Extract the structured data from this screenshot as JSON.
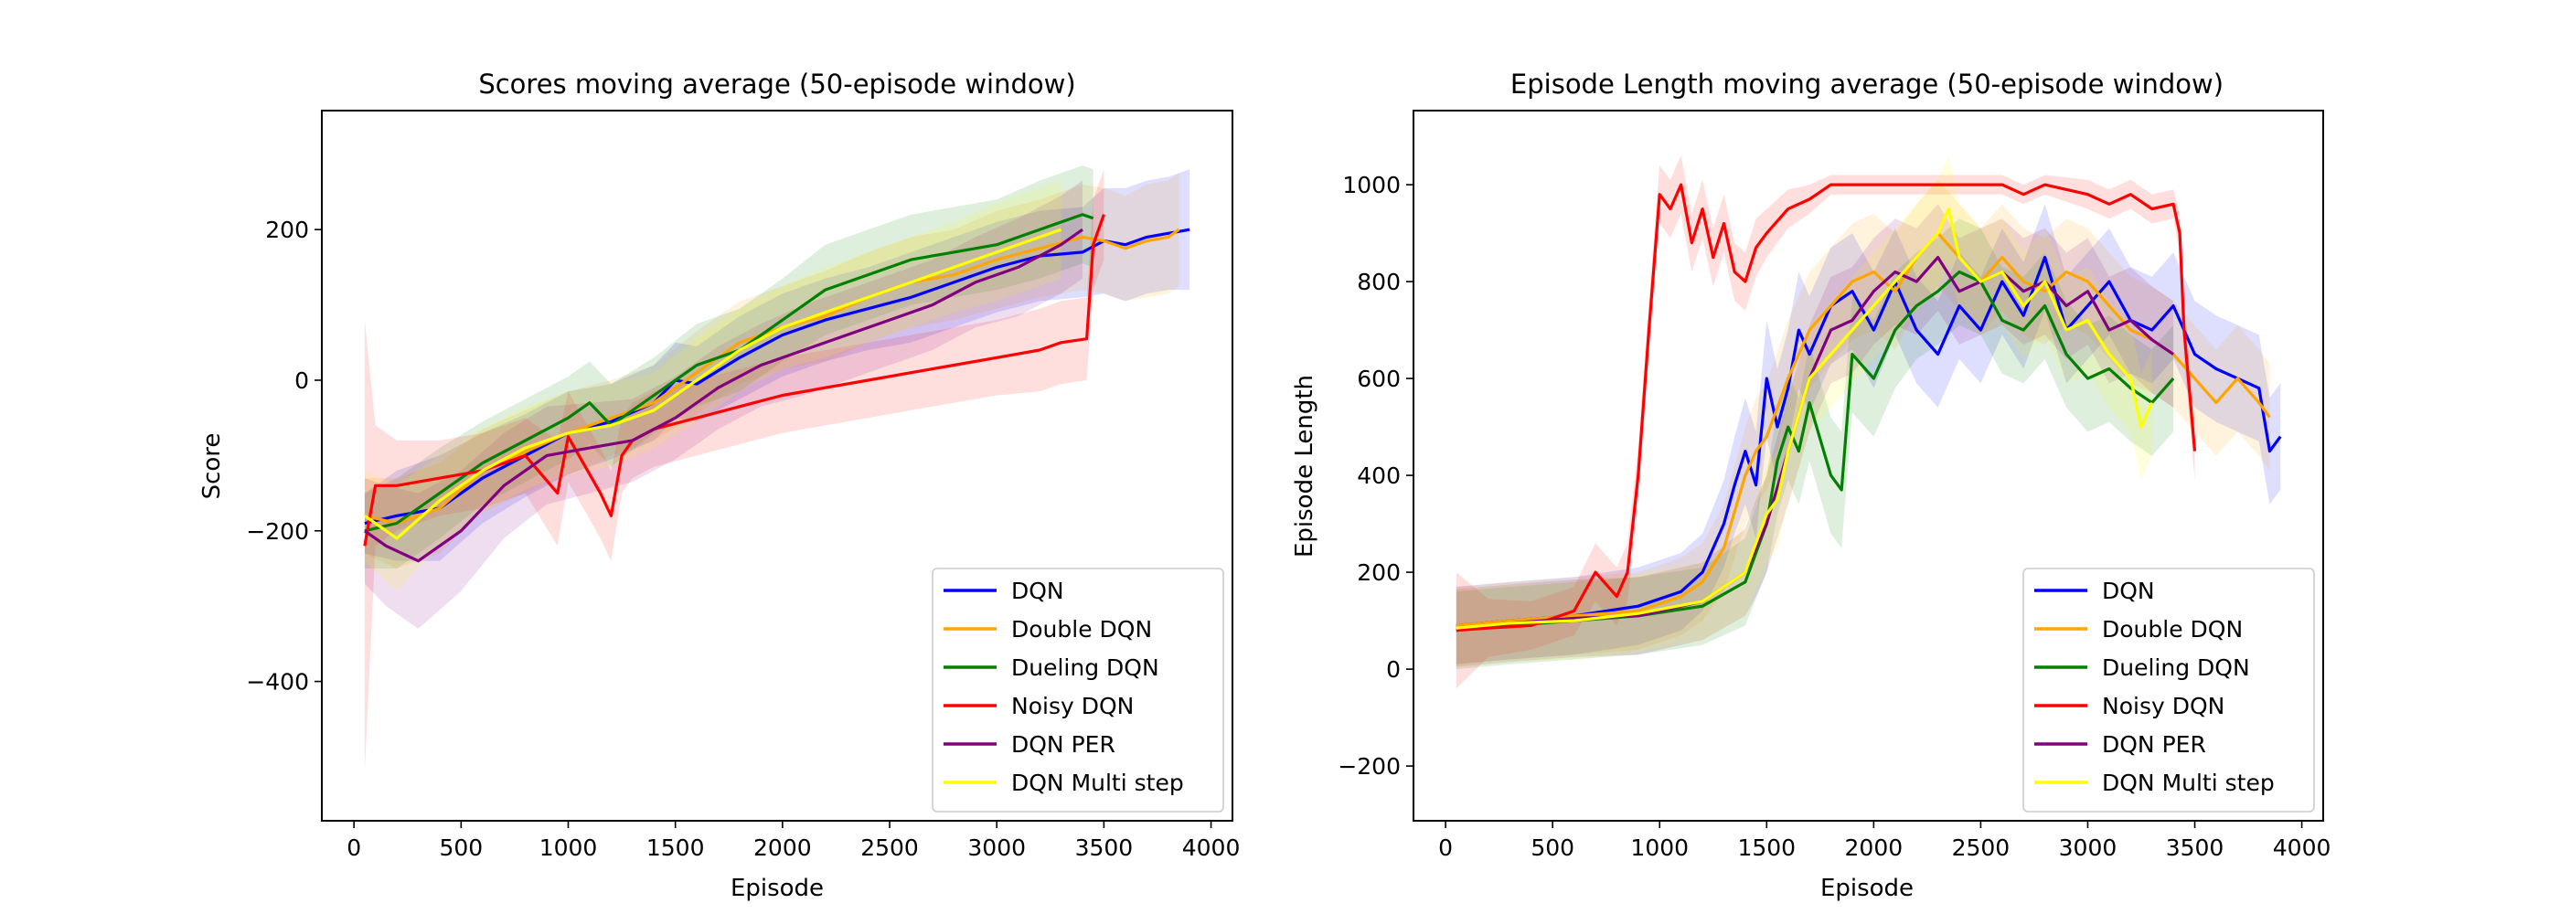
{
  "chart_data": [
    {
      "type": "line",
      "title": "Scores moving average (50-episode window)",
      "xlabel": "Episode",
      "ylabel": "Score",
      "xlim": [
        -150,
        4100
      ],
      "ylim": [
        -585,
        358
      ],
      "xticks": [
        0,
        500,
        1000,
        1500,
        2000,
        2500,
        3000,
        3500,
        4000
      ],
      "yticks": [
        -400,
        -200,
        0,
        200
      ],
      "legend_position": "lower right",
      "shaded_band": "std deviation",
      "series": [
        {
          "name": "DQN",
          "color": "#0000ff",
          "x": [
            50,
            200,
            400,
            600,
            800,
            1000,
            1200,
            1400,
            1500,
            1600,
            1800,
            2000,
            2200,
            2400,
            2600,
            2800,
            3000,
            3200,
            3400,
            3500,
            3600,
            3700,
            3800,
            3900
          ],
          "y": [
            -190,
            -180,
            -170,
            -130,
            -100,
            -70,
            -55,
            -30,
            0,
            -5,
            30,
            60,
            80,
            95,
            110,
            130,
            150,
            165,
            170,
            185,
            180,
            190,
            195,
            200
          ],
          "band": [
            40,
            60,
            70,
            60,
            55,
            55,
            50,
            50,
            50,
            50,
            55,
            55,
            55,
            55,
            60,
            60,
            60,
            60,
            60,
            70,
            75,
            75,
            75,
            80
          ]
        },
        {
          "name": "Double DQN",
          "color": "#ffa500",
          "x": [
            50,
            200,
            400,
            600,
            800,
            1000,
            1200,
            1400,
            1600,
            1800,
            2000,
            2200,
            2400,
            2600,
            2800,
            3000,
            3200,
            3400,
            3500,
            3600,
            3700,
            3800,
            3850
          ],
          "y": [
            -180,
            -190,
            -170,
            -120,
            -95,
            -70,
            -50,
            -30,
            10,
            50,
            70,
            85,
            110,
            130,
            140,
            160,
            175,
            190,
            185,
            175,
            185,
            190,
            200
          ],
          "band": [
            50,
            60,
            60,
            55,
            55,
            55,
            50,
            50,
            55,
            55,
            55,
            60,
            60,
            60,
            60,
            65,
            65,
            70,
            70,
            70,
            75,
            75,
            75
          ]
        },
        {
          "name": "Dueling DQN",
          "color": "#008000",
          "x": [
            50,
            200,
            400,
            600,
            800,
            1000,
            1100,
            1200,
            1400,
            1600,
            1800,
            2000,
            2200,
            2400,
            2600,
            2800,
            3000,
            3200,
            3400,
            3450
          ],
          "y": [
            -200,
            -190,
            -150,
            -110,
            -80,
            -50,
            -30,
            -60,
            -20,
            20,
            40,
            80,
            120,
            140,
            160,
            170,
            180,
            200,
            220,
            215
          ],
          "band": [
            50,
            60,
            60,
            55,
            55,
            55,
            55,
            55,
            50,
            55,
            55,
            55,
            60,
            60,
            60,
            60,
            60,
            65,
            65,
            65
          ]
        },
        {
          "name": "Noisy DQN",
          "color": "#ff0000",
          "x": [
            50,
            100,
            200,
            400,
            600,
            800,
            950,
            1000,
            1150,
            1200,
            1250,
            1300,
            1400,
            1600,
            1800,
            2000,
            2200,
            2400,
            2600,
            2800,
            3000,
            3200,
            3300,
            3420,
            3450,
            3500
          ],
          "y": [
            -220,
            -140,
            -140,
            -130,
            -120,
            -100,
            -150,
            -75,
            -150,
            -180,
            -100,
            -80,
            -65,
            -50,
            -35,
            -20,
            -10,
            0,
            10,
            20,
            30,
            40,
            50,
            55,
            180,
            220
          ],
          "band": [
            300,
            80,
            60,
            50,
            50,
            50,
            70,
            60,
            60,
            60,
            50,
            50,
            50,
            50,
            50,
            50,
            50,
            50,
            50,
            50,
            50,
            55,
            55,
            55,
            60,
            60
          ]
        },
        {
          "name": "DQN PER",
          "color": "#800080",
          "x": [
            50,
            150,
            300,
            500,
            700,
            900,
            1100,
            1300,
            1500,
            1700,
            1900,
            2100,
            2300,
            2500,
            2700,
            2900,
            3100,
            3300,
            3400
          ],
          "y": [
            -200,
            -220,
            -240,
            -200,
            -140,
            -100,
            -90,
            -80,
            -50,
            -10,
            20,
            40,
            60,
            80,
            100,
            130,
            150,
            180,
            200
          ],
          "band": [
            70,
            80,
            90,
            80,
            70,
            65,
            60,
            55,
            55,
            55,
            55,
            60,
            60,
            60,
            60,
            60,
            65,
            65,
            65
          ]
        },
        {
          "name": "DQN Multi step",
          "color": "#ffff00",
          "x": [
            50,
            200,
            400,
            600,
            800,
            1000,
            1200,
            1400,
            1600,
            1800,
            2000,
            2200,
            2400,
            2600,
            2800,
            3000,
            3200,
            3300
          ],
          "y": [
            -180,
            -210,
            -160,
            -120,
            -90,
            -70,
            -60,
            -40,
            0,
            40,
            70,
            90,
            110,
            130,
            150,
            170,
            190,
            200
          ],
          "band": [
            60,
            70,
            60,
            55,
            55,
            55,
            55,
            50,
            55,
            55,
            55,
            60,
            60,
            60,
            60,
            65,
            65,
            65
          ]
        }
      ]
    },
    {
      "type": "line",
      "title": "Episode Length moving average (50-episode window)",
      "xlabel": "Episode",
      "ylabel": "Episode Length",
      "xlim": [
        -150,
        4100
      ],
      "ylim": [
        -313,
        1153
      ],
      "xticks": [
        0,
        500,
        1000,
        1500,
        2000,
        2500,
        3000,
        3500,
        4000
      ],
      "yticks": [
        -200,
        0,
        200,
        400,
        600,
        800,
        1000
      ],
      "legend_position": "lower right",
      "shaded_band": "std deviation",
      "series": [
        {
          "name": "DQN",
          "color": "#0000ff",
          "x": [
            50,
            300,
            600,
            900,
            1100,
            1200,
            1300,
            1350,
            1400,
            1450,
            1500,
            1550,
            1600,
            1650,
            1700,
            1800,
            1900,
            2000,
            2100,
            2200,
            2300,
            2400,
            2500,
            2600,
            2700,
            2800,
            2900,
            3000,
            3100,
            3200,
            3300,
            3400,
            3500,
            3600,
            3700,
            3800,
            3850,
            3900
          ],
          "y": [
            90,
            100,
            110,
            130,
            160,
            200,
            300,
            380,
            450,
            380,
            600,
            500,
            580,
            700,
            650,
            750,
            780,
            700,
            800,
            700,
            650,
            750,
            700,
            800,
            730,
            850,
            700,
            750,
            800,
            720,
            700,
            750,
            650,
            620,
            600,
            580,
            450,
            480
          ],
          "band": [
            80,
            80,
            80,
            80,
            80,
            80,
            90,
            100,
            110,
            110,
            120,
            120,
            120,
            120,
            120,
            120,
            120,
            120,
            110,
            110,
            110,
            110,
            110,
            110,
            110,
            110,
            110,
            110,
            110,
            110,
            110,
            110,
            110,
            110,
            110,
            110,
            110,
            110
          ]
        },
        {
          "name": "Double DQN",
          "color": "#ffa500",
          "x": [
            50,
            300,
            600,
            900,
            1100,
            1200,
            1300,
            1400,
            1450,
            1500,
            1600,
            1700,
            1800,
            1900,
            2000,
            2100,
            2200,
            2300,
            2400,
            2500,
            2600,
            2700,
            2800,
            2900,
            3000,
            3100,
            3200,
            3300,
            3400,
            3500,
            3600,
            3700,
            3800,
            3850
          ],
          "y": [
            90,
            100,
            110,
            120,
            150,
            180,
            250,
            400,
            450,
            480,
            600,
            700,
            750,
            800,
            820,
            780,
            850,
            900,
            850,
            800,
            850,
            800,
            780,
            820,
            800,
            750,
            700,
            680,
            650,
            600,
            550,
            600,
            550,
            520
          ],
          "band": [
            80,
            80,
            80,
            80,
            80,
            80,
            90,
            100,
            110,
            110,
            120,
            120,
            120,
            120,
            120,
            120,
            110,
            110,
            110,
            110,
            110,
            110,
            110,
            110,
            110,
            110,
            110,
            110,
            110,
            110,
            110,
            110,
            110,
            110
          ]
        },
        {
          "name": "Dueling DQN",
          "color": "#008000",
          "x": [
            50,
            300,
            600,
            900,
            1200,
            1400,
            1500,
            1550,
            1600,
            1650,
            1700,
            1800,
            1850,
            1900,
            2000,
            2100,
            2200,
            2300,
            2400,
            2500,
            2600,
            2700,
            2800,
            2900,
            3000,
            3100,
            3200,
            3300,
            3400
          ],
          "y": [
            80,
            90,
            100,
            110,
            130,
            180,
            300,
            430,
            500,
            450,
            550,
            400,
            370,
            650,
            600,
            700,
            750,
            780,
            820,
            800,
            720,
            700,
            750,
            650,
            600,
            620,
            580,
            550,
            600
          ],
          "band": [
            80,
            80,
            80,
            80,
            80,
            90,
            100,
            110,
            110,
            110,
            120,
            120,
            120,
            120,
            120,
            120,
            110,
            110,
            110,
            110,
            110,
            110,
            110,
            110,
            110,
            110,
            110,
            110,
            110
          ]
        },
        {
          "name": "Noisy DQN",
          "color": "#ff0000",
          "x": [
            50,
            200,
            400,
            600,
            700,
            800,
            850,
            900,
            950,
            1000,
            1050,
            1100,
            1150,
            1200,
            1250,
            1300,
            1350,
            1400,
            1450,
            1500,
            1600,
            1700,
            1800,
            1900,
            2000,
            2200,
            2400,
            2600,
            2700,
            2800,
            3000,
            3100,
            3200,
            3300,
            3400,
            3430,
            3450,
            3500
          ],
          "y": [
            80,
            85,
            90,
            120,
            200,
            150,
            200,
            400,
            700,
            980,
            950,
            1000,
            880,
            950,
            850,
            920,
            820,
            800,
            870,
            900,
            950,
            970,
            1000,
            1000,
            1000,
            1000,
            1000,
            1000,
            980,
            1000,
            980,
            960,
            980,
            950,
            960,
            900,
            700,
            450
          ],
          "band": [
            120,
            60,
            50,
            50,
            60,
            60,
            60,
            60,
            60,
            60,
            60,
            60,
            60,
            60,
            60,
            60,
            60,
            60,
            60,
            50,
            40,
            30,
            20,
            20,
            20,
            20,
            20,
            20,
            20,
            20,
            30,
            30,
            30,
            30,
            30,
            40,
            60,
            60
          ]
        },
        {
          "name": "DQN PER",
          "color": "#800080",
          "x": [
            50,
            300,
            600,
            900,
            1200,
            1400,
            1450,
            1500,
            1600,
            1700,
            1800,
            1900,
            2000,
            2100,
            2200,
            2300,
            2400,
            2500,
            2600,
            2700,
            2800,
            2900,
            3000,
            3100,
            3200,
            3300,
            3400
          ],
          "y": [
            85,
            95,
            105,
            110,
            140,
            200,
            250,
            300,
            450,
            600,
            700,
            720,
            780,
            820,
            800,
            850,
            780,
            800,
            820,
            780,
            800,
            750,
            780,
            700,
            720,
            680,
            650
          ],
          "band": [
            80,
            80,
            80,
            80,
            80,
            90,
            100,
            100,
            110,
            110,
            110,
            110,
            110,
            110,
            110,
            110,
            110,
            110,
            110,
            110,
            110,
            110,
            110,
            110,
            110,
            110,
            110
          ]
        },
        {
          "name": "DQN Multi step",
          "color": "#ffff00",
          "x": [
            50,
            300,
            600,
            900,
            1200,
            1400,
            1500,
            1550,
            1600,
            1700,
            1800,
            1900,
            2000,
            2100,
            2200,
            2300,
            2350,
            2400,
            2500,
            2600,
            2700,
            2800,
            2900,
            3000,
            3100,
            3200,
            3250,
            3300
          ],
          "y": [
            85,
            95,
            100,
            115,
            140,
            200,
            320,
            350,
            450,
            600,
            650,
            700,
            750,
            800,
            850,
            900,
            950,
            850,
            800,
            820,
            750,
            800,
            700,
            720,
            650,
            600,
            500,
            550
          ],
          "band": [
            80,
            80,
            80,
            80,
            80,
            90,
            100,
            100,
            110,
            110,
            110,
            110,
            110,
            110,
            110,
            110,
            110,
            110,
            110,
            110,
            110,
            110,
            110,
            110,
            110,
            110,
            110,
            110
          ]
        }
      ]
    }
  ]
}
